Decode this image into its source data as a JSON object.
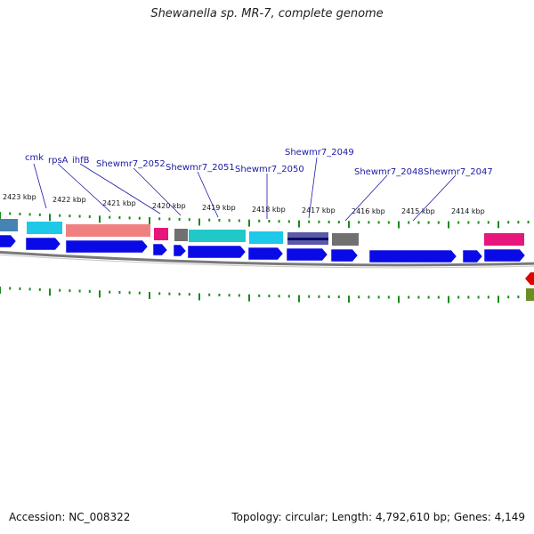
{
  "title": "Shewanella sp. MR-7, complete genome",
  "footer": {
    "accession": "Accession: NC_008322",
    "summary": "Topology: circular; Length: 4,792,610 bp; Genes: 4,149"
  },
  "ticks": [
    "2423 kbp",
    "2422 kbp",
    "2421 kbp",
    "2420 kbp",
    "2419 kbp",
    "2418 kbp",
    "2417 kbp",
    "2416 kbp",
    "2415 kbp",
    "2414 kbp"
  ],
  "gene_labels": [
    "cmk",
    "rpsA",
    "ihfB",
    "Shewmr7_2052",
    "Shewmr7_2051",
    "Shewmr7_2050",
    "Shewmr7_2049",
    "Shewmr7_2048",
    "Shewmr7_2047"
  ],
  "colors": {
    "label_blue": "#1a1aa6",
    "cds_blue": "#0a0ae6",
    "tick_green": "#1a8a1a",
    "backbone": "#808080",
    "cyan": "#1ec8e8",
    "salmon": "#f08080",
    "magenta": "#e6167a",
    "gray": "#707070",
    "teal": "#20c0c0",
    "navy_purple": "#4040a0",
    "steel_blue": "#4682b4",
    "red": "#e00000",
    "olive": "#6b8e23"
  }
}
